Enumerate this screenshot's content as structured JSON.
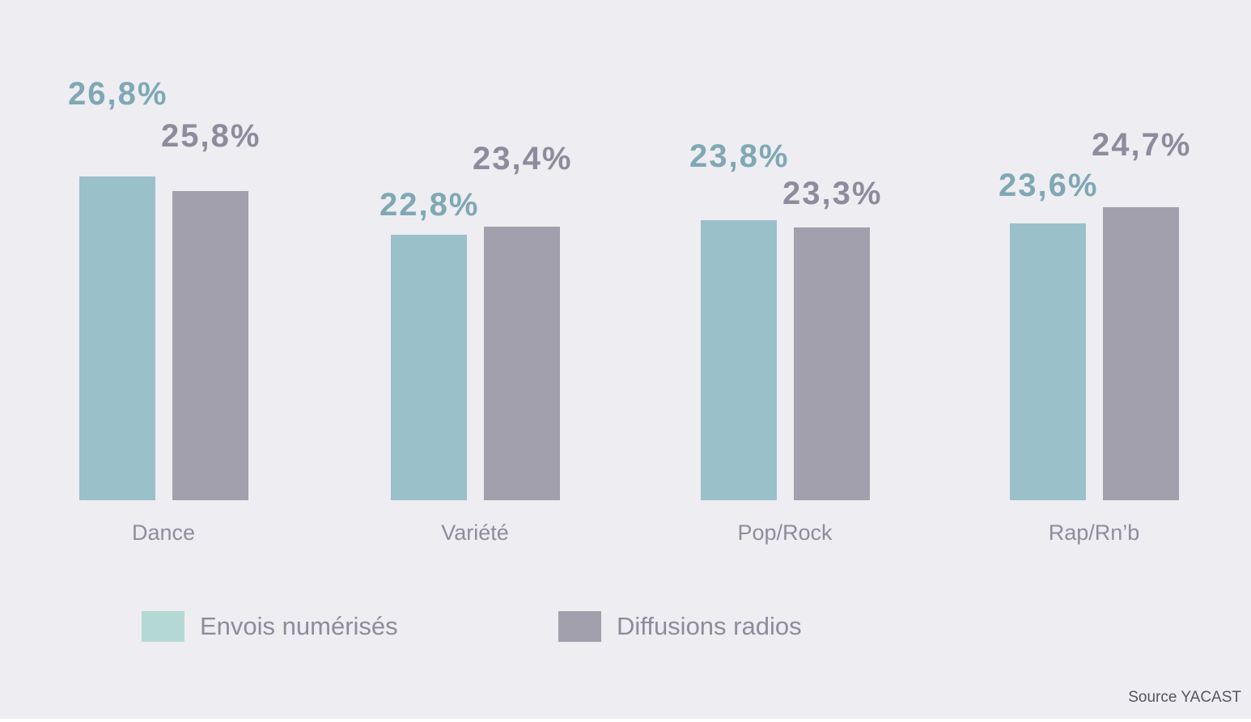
{
  "page": {
    "background": "#eeedf2"
  },
  "chart_data": {
    "type": "bar",
    "title": "",
    "categories": [
      "Dance",
      "Variété",
      "Pop/Rock",
      "Rap/Rn’b"
    ],
    "series": [
      {
        "name": "Envois numérisés",
        "values": [
          26.8,
          22.8,
          23.8,
          23.6
        ],
        "labels": [
          "26,8%",
          "22,8%",
          "23,8%",
          "23,6%"
        ],
        "bar_color": "#9ac0ca",
        "label_color": "#7fa8b4",
        "legend_swatch_color": "#b4d9d5"
      },
      {
        "name": "Diffusions radios",
        "values": [
          25.8,
          23.4,
          23.3,
          24.7
        ],
        "labels": [
          "25,8%",
          "23,4%",
          "23,3%",
          "24,7%"
        ],
        "bar_color": "#a2a0ac",
        "label_color": "#8e8c9c",
        "legend_swatch_color": "#a2a0ac"
      }
    ],
    "ylim": [
      4.6,
      27.5
    ],
    "grid": false,
    "legend_position": "bottom",
    "legend_text_color": "#8e8c9b",
    "axis": {
      "x_labels_color": "#8f8d9c"
    }
  },
  "footer": {
    "source_label": "Source YACAST",
    "source_color": "#55555f"
  }
}
